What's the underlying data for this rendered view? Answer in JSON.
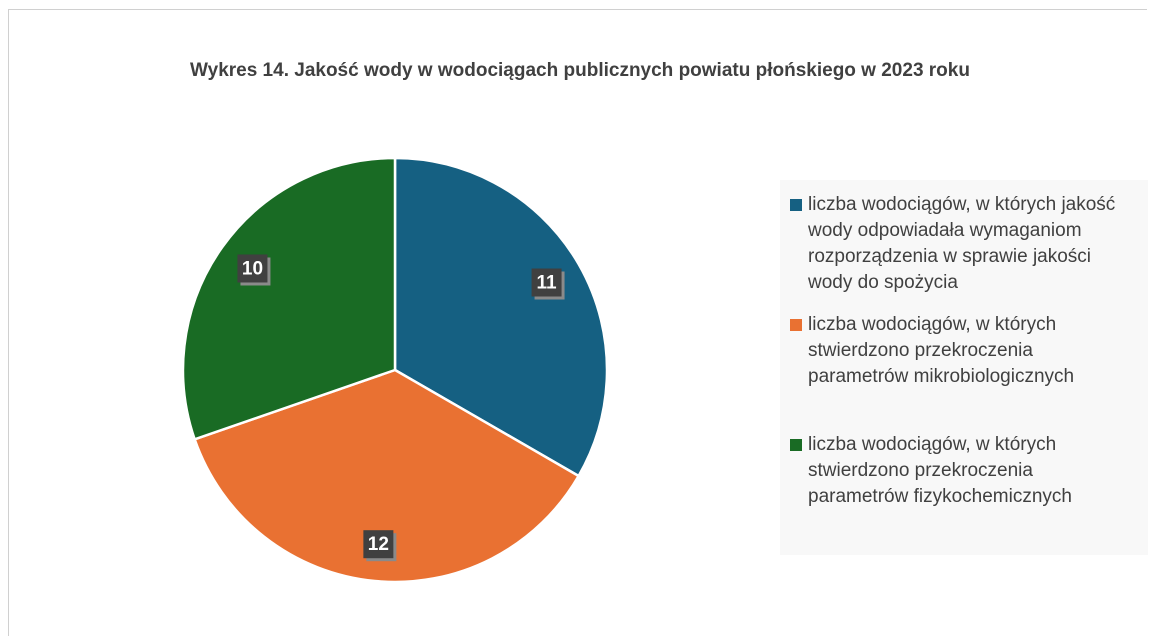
{
  "chart_data": {
    "type": "pie",
    "title": "Wykres 14. Jakość wody w wodociągach publicznych powiatu płońskiego w 2023 roku",
    "categories": [
      "liczba wodociągów, w których jakość wody odpowiadała wymaganiom rozporządzenia w sprawie jakości wody do spożycia",
      "liczba wodociągów, w których stwierdzono przekroczenia parametrów mikrobiologicznych",
      "liczba wodociągów, w których stwierdzono przekroczenia parametrów fizykochemicznych"
    ],
    "values": [
      11,
      12,
      10
    ],
    "colors": [
      "#156082",
      "#e97132",
      "#196b24"
    ],
    "legend": "right"
  }
}
